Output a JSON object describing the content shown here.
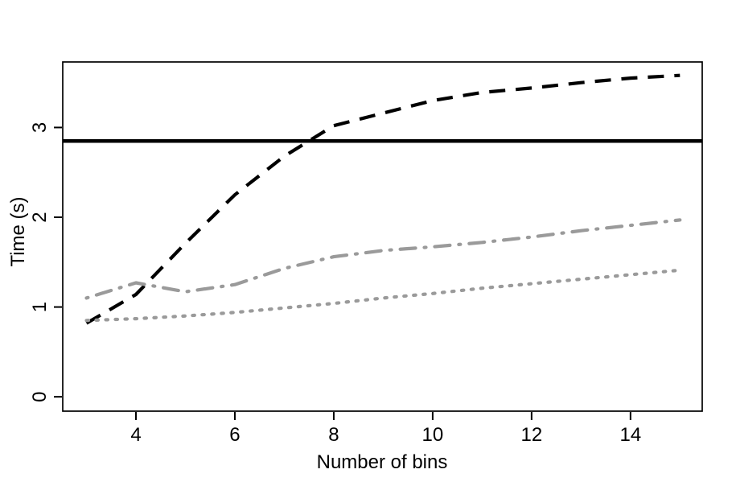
{
  "chart_data": {
    "type": "line",
    "title": "",
    "xlabel": "Number of bins",
    "ylabel": "Time (s)",
    "x": [
      3,
      4,
      5,
      6,
      7,
      8,
      9,
      10,
      11,
      12,
      13,
      14,
      15
    ],
    "series": [
      {
        "name": "solid-black-reference-line",
        "linetype": "solid",
        "color": "#000000",
        "hline": 2.85
      },
      {
        "name": "dashed-black-curve",
        "linetype": "dashed",
        "color": "#000000",
        "values": [
          0.82,
          1.14,
          1.71,
          2.25,
          2.68,
          3.02,
          3.16,
          3.3,
          3.39,
          3.44,
          3.5,
          3.55,
          3.58
        ]
      },
      {
        "name": "dotdash-gray-curve",
        "linetype": "dotdash",
        "color": "#9a9a9a",
        "values": [
          1.1,
          1.27,
          1.17,
          1.25,
          1.43,
          1.56,
          1.63,
          1.67,
          1.72,
          1.78,
          1.85,
          1.91,
          1.97
        ]
      },
      {
        "name": "dotted-gray-curve",
        "linetype": "dotted",
        "color": "#9a9a9a",
        "values": [
          0.85,
          0.87,
          0.9,
          0.94,
          0.99,
          1.04,
          1.1,
          1.15,
          1.21,
          1.26,
          1.31,
          1.36,
          1.41
        ]
      }
    ],
    "x_ticks": [
      4,
      6,
      8,
      10,
      12,
      14
    ],
    "y_ticks": [
      0,
      1,
      2,
      3
    ],
    "xlim": [
      2.52,
      15.45
    ],
    "ylim": [
      -0.16,
      3.73
    ],
    "grid": false,
    "legend_position": "none",
    "axis_color": "#000000",
    "background_color": "#ffffff"
  }
}
